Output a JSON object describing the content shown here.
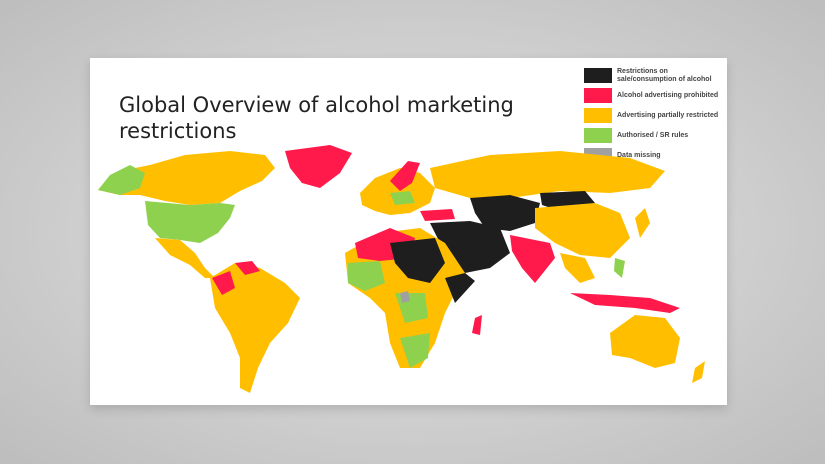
{
  "title": "Global Overview of alcohol marketing restrictions",
  "legend": [
    {
      "label": "Restrictions on sale/consumption of alcohol",
      "color": "#1e1e1e"
    },
    {
      "label": "Alcohol advertising prohibited",
      "color": "#ff1a4b"
    },
    {
      "label": "Advertising partially restricted",
      "color": "#ffbf00"
    },
    {
      "label": "Authorised / SR rules",
      "color": "#8ed14f"
    },
    {
      "label": "Data missing",
      "color": "#a0a0a0"
    }
  ]
}
